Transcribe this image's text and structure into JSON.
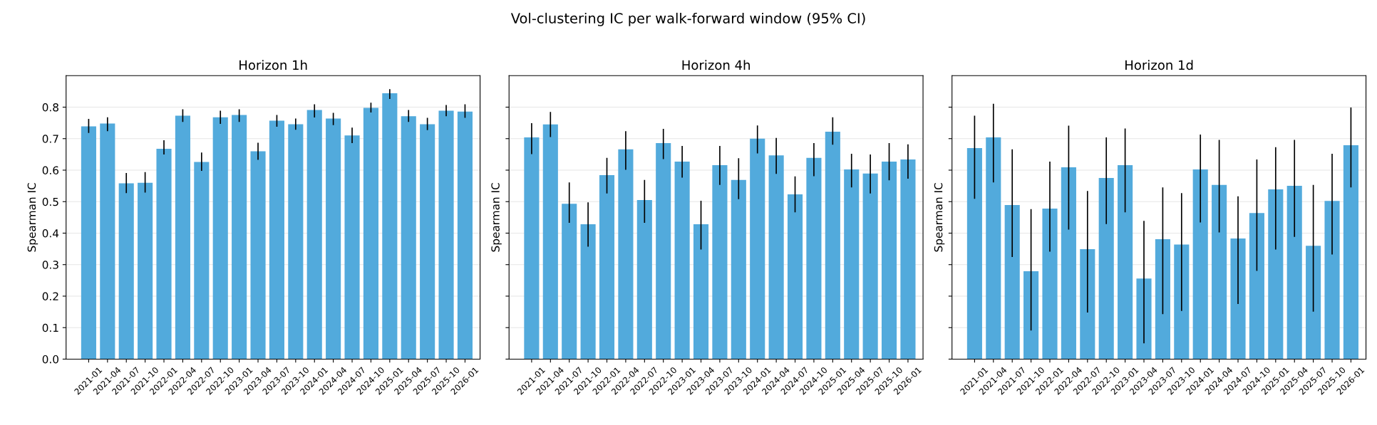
{
  "chart_data": [
    {
      "type": "bar",
      "title": "Horizon 1h",
      "ylabel": "Spearman IC",
      "annotations": [
        "Vol-clustering IC per walk-forward window (95% CI)"
      ],
      "categories": [
        "2021-01",
        "2021-04",
        "2021-07",
        "2021-10",
        "2022-01",
        "2022-04",
        "2022-07",
        "2022-10",
        "2023-01",
        "2023-04",
        "2023-07",
        "2023-10",
        "2024-01",
        "2024-04",
        "2024-07",
        "2024-10",
        "2025-01",
        "2025-04",
        "2025-07",
        "2025-10",
        "2026-01"
      ],
      "color": "#52aadc",
      "grid": "y",
      "ylim": [
        0,
        0.9
      ],
      "yticks": [
        {
          "value": 0,
          "label": "0.0"
        },
        0.1,
        0.2,
        0.3,
        0.4,
        0.5,
        0.6,
        0.7,
        0.8
      ],
      "values": [
        0.739,
        0.748,
        0.558,
        0.56,
        0.668,
        0.773,
        0.626,
        0.768,
        0.775,
        0.66,
        0.757,
        0.746,
        0.791,
        0.764,
        0.71,
        0.798,
        0.844,
        0.771,
        0.746,
        0.789,
        0.786
      ],
      "errors": [
        [
          0.718,
          0.763
        ],
        [
          0.724,
          0.768
        ],
        [
          0.527,
          0.591
        ],
        [
          0.529,
          0.594
        ],
        [
          0.65,
          0.695
        ],
        [
          0.753,
          0.793
        ],
        [
          0.598,
          0.656
        ],
        [
          0.747,
          0.789
        ],
        [
          0.753,
          0.793
        ],
        [
          0.633,
          0.687
        ],
        [
          0.738,
          0.775
        ],
        [
          0.728,
          0.764
        ],
        [
          0.767,
          0.809
        ],
        [
          0.743,
          0.782
        ],
        [
          0.686,
          0.735
        ],
        [
          0.783,
          0.814
        ],
        [
          0.826,
          0.857
        ],
        [
          0.753,
          0.791
        ],
        [
          0.727,
          0.766
        ],
        [
          0.771,
          0.807
        ],
        [
          0.766,
          0.809
        ]
      ]
    },
    {
      "type": "bar",
      "title": "Horizon 4h",
      "ylabel": "Spearman IC",
      "categories": [
        "2021-01",
        "2021-04",
        "2021-07",
        "2021-10",
        "2022-01",
        "2022-04",
        "2022-07",
        "2022-10",
        "2023-01",
        "2023-04",
        "2023-07",
        "2023-10",
        "2024-01",
        "2024-04",
        "2024-07",
        "2024-10",
        "2025-01",
        "2025-04",
        "2025-07",
        "2025-10",
        "2026-01"
      ],
      "color": "#52aadc",
      "grid": "y",
      "ylim": [
        0,
        0.9
      ],
      "yticks": [
        0.0,
        0.1,
        0.2,
        0.3,
        0.4,
        0.5,
        0.6,
        0.7,
        0.8
      ],
      "tick_labels": "x",
      "values": [
        0.704,
        0.745,
        0.493,
        0.428,
        0.584,
        0.666,
        0.505,
        0.686,
        0.627,
        0.428,
        0.616,
        0.569,
        0.7,
        0.647,
        0.523,
        0.639,
        0.722,
        0.602,
        0.589,
        0.627,
        0.634
      ],
      "errors": [
        [
          0.651,
          0.749
        ],
        [
          0.705,
          0.785
        ],
        [
          0.433,
          0.561
        ],
        [
          0.357,
          0.498
        ],
        [
          0.526,
          0.639
        ],
        [
          0.601,
          0.724
        ],
        [
          0.433,
          0.569
        ],
        [
          0.635,
          0.731
        ],
        [
          0.576,
          0.677
        ],
        [
          0.348,
          0.503
        ],
        [
          0.553,
          0.677
        ],
        [
          0.508,
          0.638
        ],
        [
          0.653,
          0.742
        ],
        [
          0.588,
          0.702
        ],
        [
          0.466,
          0.58
        ],
        [
          0.581,
          0.686
        ],
        [
          0.681,
          0.768
        ],
        [
          0.545,
          0.652
        ],
        [
          0.526,
          0.65
        ],
        [
          0.568,
          0.686
        ],
        [
          0.573,
          0.682
        ]
      ]
    },
    {
      "type": "bar",
      "title": "Horizon 1d",
      "ylabel": "Spearman IC",
      "categories": [
        "2021-01",
        "2021-04",
        "2021-07",
        "2021-10",
        "2022-01",
        "2022-04",
        "2022-07",
        "2022-10",
        "2023-01",
        "2023-04",
        "2023-07",
        "2023-10",
        "2024-01",
        "2024-04",
        "2024-07",
        "2024-10",
        "2025-01",
        "2025-04",
        "2025-07",
        "2025-10",
        "2026-01"
      ],
      "color": "#52aadc",
      "grid": "y",
      "ylim": [
        0,
        0.9
      ],
      "yticks": [
        0.0,
        0.1,
        0.2,
        0.3,
        0.4,
        0.5,
        0.6,
        0.7,
        0.8
      ],
      "tick_labels": "x",
      "values": [
        0.67,
        0.704,
        0.489,
        0.279,
        0.478,
        0.609,
        0.349,
        0.575,
        0.616,
        0.256,
        0.381,
        0.364,
        0.602,
        0.553,
        0.383,
        0.464,
        0.539,
        0.55,
        0.36,
        0.502,
        0.679
      ],
      "errors": [
        [
          0.509,
          0.773
        ],
        [
          0.561,
          0.811
        ],
        [
          0.324,
          0.666
        ],
        [
          0.091,
          0.476
        ],
        [
          0.341,
          0.627
        ],
        [
          0.411,
          0.741
        ],
        [
          0.148,
          0.534
        ],
        [
          0.429,
          0.704
        ],
        [
          0.466,
          0.732
        ],
        [
          0.05,
          0.439
        ],
        [
          0.143,
          0.545
        ],
        [
          0.153,
          0.527
        ],
        [
          0.434,
          0.713
        ],
        [
          0.402,
          0.696
        ],
        [
          0.175,
          0.517
        ],
        [
          0.28,
          0.634
        ],
        [
          0.348,
          0.673
        ],
        [
          0.388,
          0.696
        ],
        [
          0.151,
          0.553
        ],
        [
          0.332,
          0.652
        ],
        [
          0.545,
          0.799
        ]
      ]
    }
  ]
}
